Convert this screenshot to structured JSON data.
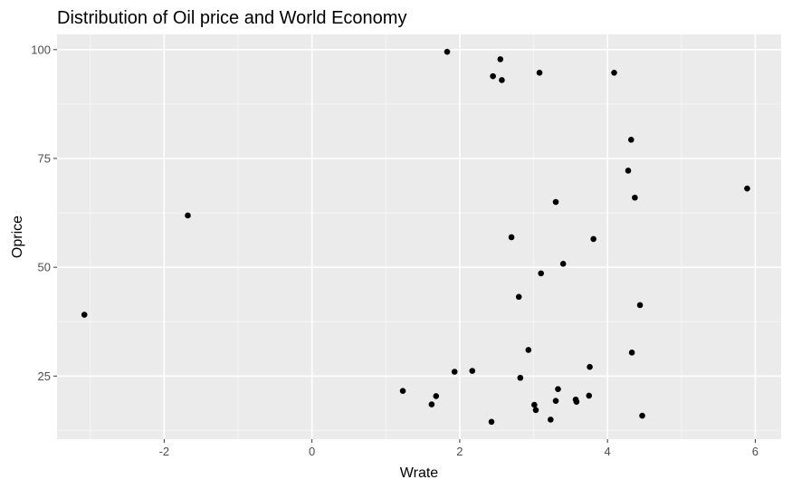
{
  "chart_data": {
    "type": "scatter",
    "title": "Distribution of Oil price and World Economy",
    "xlabel": "Wrate",
    "ylabel": "Oprice",
    "xlim": [
      -3.45,
      6.35
    ],
    "ylim": [
      10.5,
      103.5
    ],
    "x_ticks": [
      -2,
      0,
      2,
      4,
      6
    ],
    "y_ticks": [
      25,
      50,
      75,
      100
    ],
    "x_tick_labels": [
      "-2",
      "0",
      "2",
      "4",
      "6"
    ],
    "y_tick_labels": [
      "25",
      "50",
      "75",
      "100"
    ],
    "grid": true,
    "legend": "none",
    "colors": {
      "panel": "#ebebeb",
      "grid_major": "#ffffff",
      "grid_minor": "#f5f5f5",
      "point": "#000000"
    },
    "points": [
      {
        "x": -3.08,
        "y": 39.1
      },
      {
        "x": -1.68,
        "y": 61.9
      },
      {
        "x": 1.23,
        "y": 21.6
      },
      {
        "x": 1.62,
        "y": 18.5
      },
      {
        "x": 1.68,
        "y": 20.4
      },
      {
        "x": 1.83,
        "y": 99.5
      },
      {
        "x": 1.93,
        "y": 26.0
      },
      {
        "x": 2.17,
        "y": 26.2
      },
      {
        "x": 2.43,
        "y": 14.5
      },
      {
        "x": 2.45,
        "y": 93.9
      },
      {
        "x": 2.55,
        "y": 97.8
      },
      {
        "x": 2.57,
        "y": 93.0
      },
      {
        "x": 2.7,
        "y": 56.9
      },
      {
        "x": 2.8,
        "y": 43.2
      },
      {
        "x": 2.82,
        "y": 24.6
      },
      {
        "x": 2.93,
        "y": 31.0
      },
      {
        "x": 3.01,
        "y": 18.4
      },
      {
        "x": 3.03,
        "y": 17.2
      },
      {
        "x": 3.08,
        "y": 94.7
      },
      {
        "x": 3.1,
        "y": 48.6
      },
      {
        "x": 3.23,
        "y": 15.0
      },
      {
        "x": 3.3,
        "y": 65.0
      },
      {
        "x": 3.3,
        "y": 19.3
      },
      {
        "x": 3.33,
        "y": 22.0
      },
      {
        "x": 3.4,
        "y": 50.8
      },
      {
        "x": 3.57,
        "y": 19.6
      },
      {
        "x": 3.58,
        "y": 19.1
      },
      {
        "x": 3.75,
        "y": 20.5
      },
      {
        "x": 3.76,
        "y": 27.1
      },
      {
        "x": 3.81,
        "y": 56.5
      },
      {
        "x": 4.09,
        "y": 94.7
      },
      {
        "x": 4.28,
        "y": 72.2
      },
      {
        "x": 4.32,
        "y": 79.3
      },
      {
        "x": 4.33,
        "y": 30.4
      },
      {
        "x": 4.37,
        "y": 66.0
      },
      {
        "x": 4.44,
        "y": 41.3
      },
      {
        "x": 4.47,
        "y": 15.9
      },
      {
        "x": 5.89,
        "y": 68.1
      }
    ]
  }
}
